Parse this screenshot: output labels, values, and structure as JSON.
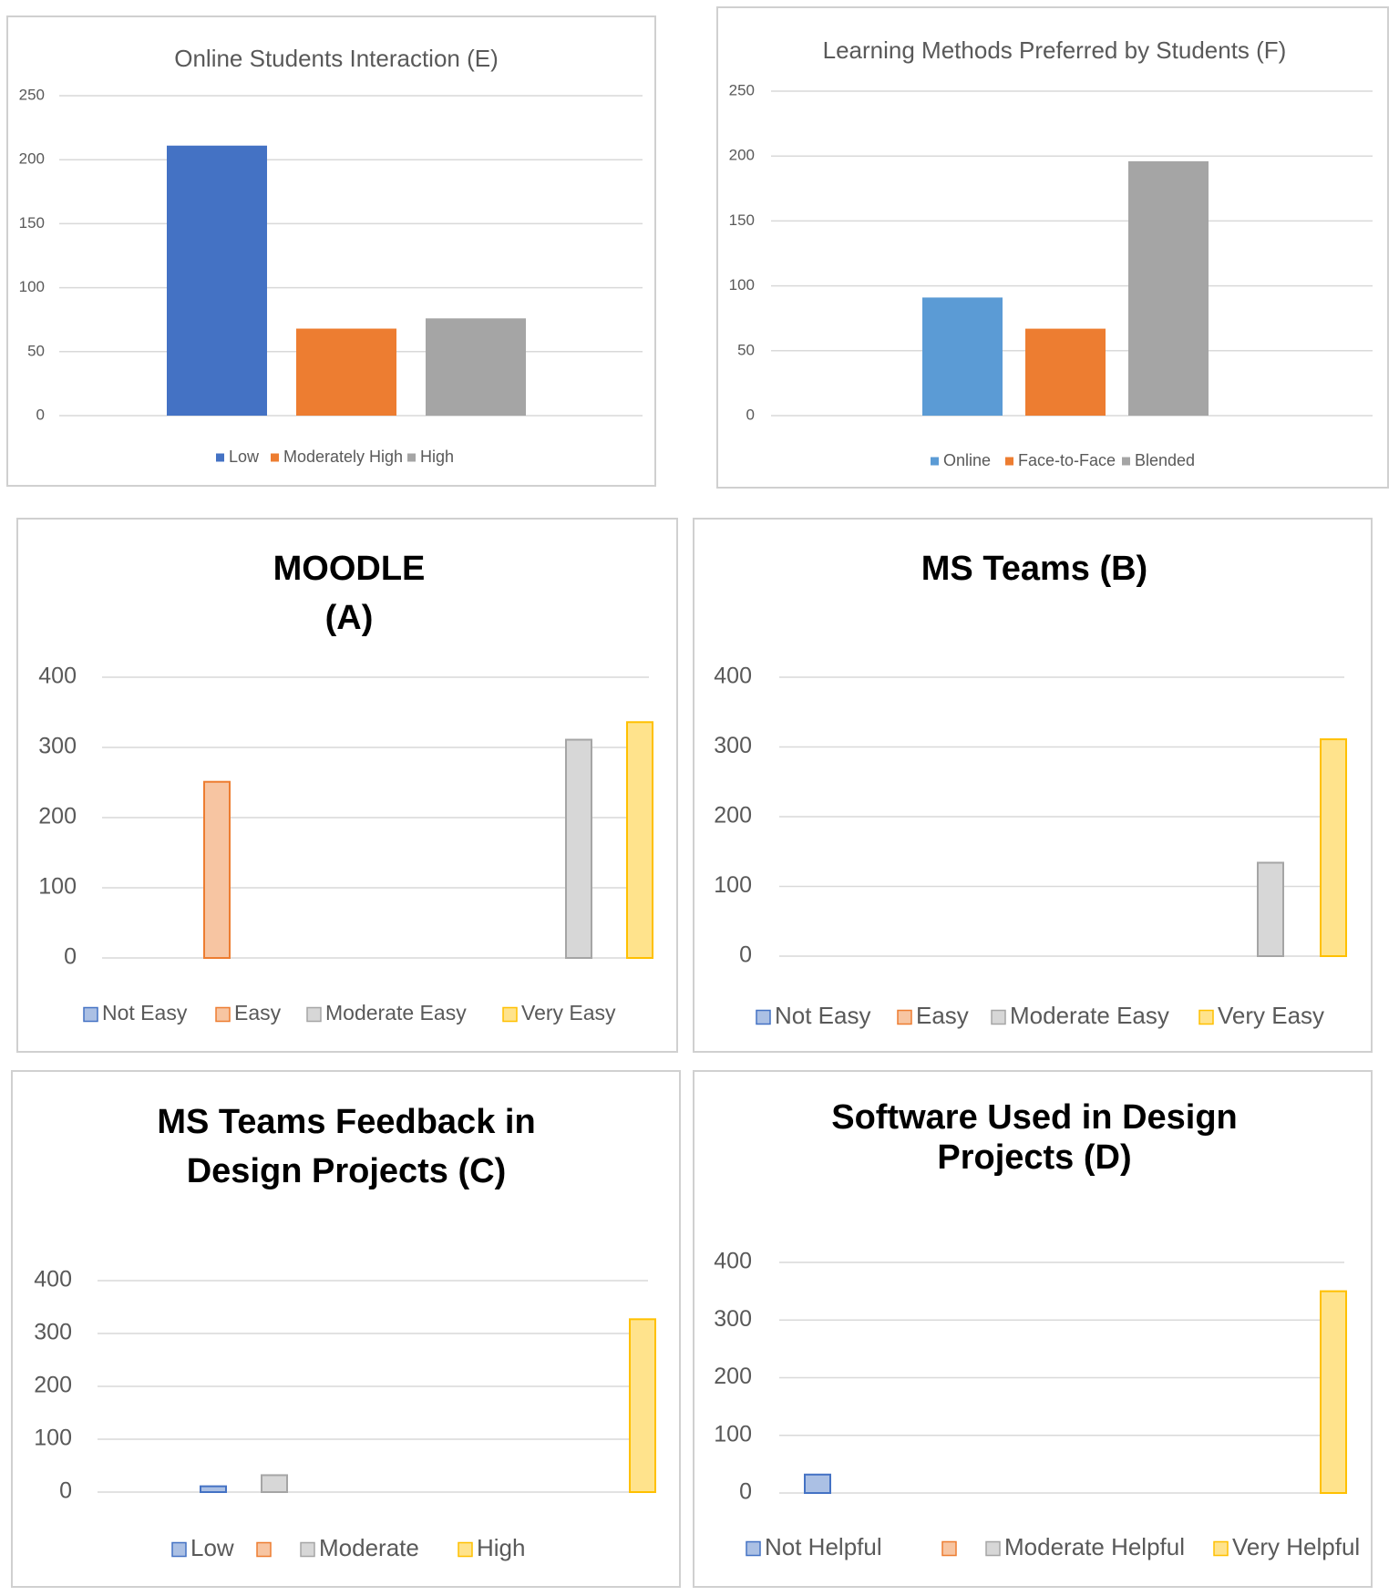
{
  "chart_data": [
    {
      "id": "E",
      "type": "bar",
      "title": "Online Students Interaction (E)",
      "categories": [
        "Low",
        "Moderately High",
        "High"
      ],
      "values": [
        211,
        68,
        76
      ],
      "ylim": [
        0,
        250
      ],
      "yticks": [
        0,
        50,
        100,
        150,
        200,
        250
      ],
      "grid": true,
      "legend": "bottom",
      "colors": [
        "#4472c4",
        "#ed7d31",
        "#a5a5a5"
      ]
    },
    {
      "id": "F",
      "type": "bar",
      "title": "Learning Methods Preferred by Students (F)",
      "categories": [
        "Online",
        "Face-to-Face",
        "Blended"
      ],
      "values": [
        91,
        67,
        196
      ],
      "ylim": [
        0,
        250
      ],
      "yticks": [
        0,
        50,
        100,
        150,
        200,
        250
      ],
      "grid": true,
      "legend": "bottom",
      "colors": [
        "#5b9bd5",
        "#ed7d31",
        "#a5a5a5"
      ]
    },
    {
      "id": "A",
      "type": "bar",
      "title": [
        "MOODLE",
        "(A)"
      ],
      "categories": [
        "Not Easy",
        "Easy",
        "Moderate Easy",
        "Very Easy"
      ],
      "values": [
        0,
        251,
        311,
        336
      ],
      "ylim": [
        0,
        400
      ],
      "yticks": [
        0,
        100,
        200,
        300,
        400
      ],
      "grid": true,
      "legend": "bottom",
      "colors": [
        "#4472c4",
        "#ed7d31",
        "#a5a5a5",
        "#ffc000"
      ]
    },
    {
      "id": "B",
      "type": "bar",
      "title": [
        "MS Teams (B)"
      ],
      "categories": [
        "Not Easy",
        "Easy",
        "Moderate Easy",
        "Very Easy"
      ],
      "values": [
        0,
        0,
        134,
        311
      ],
      "ylim": [
        0,
        400
      ],
      "yticks": [
        0,
        100,
        200,
        300,
        400
      ],
      "grid": true,
      "legend": "bottom",
      "colors": [
        "#4472c4",
        "#ed7d31",
        "#a5a5a5",
        "#ffc000"
      ]
    },
    {
      "id": "C",
      "type": "bar",
      "title": [
        "MS Teams Feedback in",
        "Design Projects (C)"
      ],
      "categories": [
        "Low",
        "",
        "Moderate",
        "High"
      ],
      "values": [
        11,
        0,
        32,
        327
      ],
      "ylim": [
        0,
        400
      ],
      "yticks": [
        0,
        100,
        200,
        300,
        400
      ],
      "grid": true,
      "legend": "bottom",
      "colors": [
        "#4472c4",
        "#ed7d31",
        "#a5a5a5",
        "#ffc000"
      ]
    },
    {
      "id": "D",
      "type": "bar",
      "title": [
        "Software Used in Design",
        "Projects (D)"
      ],
      "categories": [
        "Not Helpful",
        "",
        "Moderate Helpful",
        "Very Helpful"
      ],
      "values": [
        32,
        0,
        0,
        350
      ],
      "ylim": [
        0,
        400
      ],
      "yticks": [
        0,
        100,
        200,
        300,
        400
      ],
      "grid": true,
      "legend": "bottom",
      "colors": [
        "#4472c4",
        "#ed7d31",
        "#a5a5a5",
        "#ffc000"
      ]
    }
  ]
}
